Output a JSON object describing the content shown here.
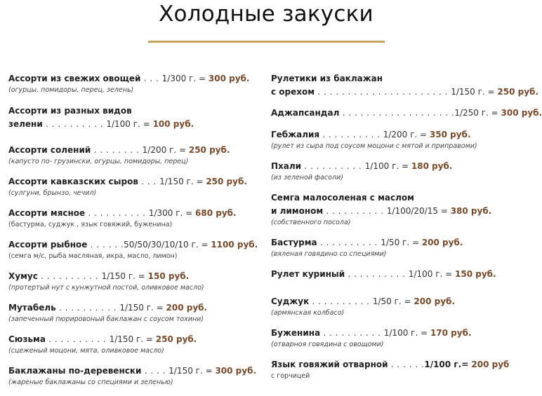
{
  "title": "Холодные закуски",
  "colors": {
    "accent_rule": "#c9a35a",
    "price": "#7b4a2a",
    "text": "#222222"
  },
  "left_column": [
    {
      "name": "Ассорти из свежих овощей",
      "dots": " . . . ",
      "portion": "1/300 г. = ",
      "price": "300 руб.",
      "note": "(огурцы, помидоры, перец, зелень)"
    },
    {
      "name_line1": "Ассорти из разных видов",
      "name": "зелени",
      "dots": " . . . . . . . . . . ",
      "portion": "1/100 г. = ",
      "price": "100 руб."
    },
    {
      "name": "Ассорти солений",
      "dots": "  . . . . . . . . ",
      "portion": "1/200 г. = ",
      "price": "250 руб.",
      "note": "(капусто по- грузински, огурцы, помидоры, перец)"
    },
    {
      "name": "Ассорти кавказских сыров",
      "dots": " . . . ",
      "portion": "1/150 г. = ",
      "price": "250 руб.",
      "note": "(сулгуни, брынзо, чечил)"
    },
    {
      "name": "Ассорти мясное",
      "dots": " . . . . . . . . . . ",
      "portion": "1/300 г. = ",
      "price": "680 руб.",
      "note": "(бастурма, суджук , язык говяжий, буженина)",
      "note_plain": true
    },
    {
      "name": "Ассорти рыбное",
      "dots": " . . . . . .",
      "portion": "50/50/30/10/10 г. = ",
      "price": "1100 руб.",
      "note": "(семга м/с, рыба масляная, икра, масло, лимон)",
      "note_plain": true
    },
    {
      "name": "Хумус",
      "dots": " . . . . . . . . . . ",
      "portion": "1/150 г. = ",
      "price": "150 руб.",
      "note": "(протертый нут с кунжутной постой, оливковое масло)"
    },
    {
      "name": "Мутабель",
      "dots": " . . . . . . . . . . ",
      "portion": "1/150 г. = ",
      "price": "200 руб.",
      "note": "(запеченный пюрировоный баклажан с соусом тохини)"
    },
    {
      "name": "Сюзьма",
      "dots": " . . . . . . . . . . ",
      "portion": "1/150 г. = ",
      "price": "250 руб.",
      "note": "(сцеженый моцони, мята, оливковое масло)"
    },
    {
      "name": "Баклажаны по-деревенски",
      "dots": " . . . . ",
      "portion": "1/150 г. = ",
      "price": "300 руб.",
      "note": "(жареные баклажаны со специями и зеленью)"
    }
  ],
  "right_column": [
    {
      "name_line1": "Рулетики из баклажан",
      "name": "с орехом",
      "dots": " . . . . . . . . . . . . . . . . . . . . . . ",
      "portion": "1/150 г. =   ",
      "price": "250 руб."
    },
    {
      "name": "Аджапсандал",
      "dots": " . . . . . . . . . . . . . . . . . . .",
      "portion": "1/250 г. = ",
      "price": "300 руб."
    },
    {
      "name": "Гебжалия",
      "dots": " . . . . . . . . . . ",
      "portion": "1/200 г. = ",
      "price": "350 руб.",
      "note": "(рулет из сыра под соусом моцони с мятой и приправоми)"
    },
    {
      "name": "Пхали",
      "dots": " . . . . . . . . . . ",
      "portion": "1/100 г. = ",
      "price": "180 руб.",
      "note": "(из зеленой фасоли)"
    },
    {
      "name_line1": "Семга малосоленая с маслом",
      "name": "и лимоном",
      "dots": " . . . . . . . . . . ",
      "portion": "1/100/20/15 = ",
      "price": "380 руб.",
      "note": "(собственного посола)"
    },
    {
      "name": "Бастурма",
      "dots": " . . . . . . . . . . ",
      "portion": "1/50 г. = ",
      "price": "200 руб.",
      "note": "(вяленая говядино со специями)"
    },
    {
      "name": "Рулет куриный",
      "dots": " . . . . . . . . . . ",
      "portion": "1/100 г. = ",
      "price": "150 руб."
    },
    {
      "name": "Суджук",
      "dots": " . . . . . . . . . . ",
      "portion": "1/50 г. = ",
      "price": "200 руб.",
      "note": "(армянская колбасо)"
    },
    {
      "name": "Буженина",
      "dots": " . . . . . . . . . . ",
      "portion": "1/100 г. = ",
      "price": "170 руб.",
      "note": "(отварноя говядина с овощоми)"
    },
    {
      "name": "Язык говяжий отварной",
      "dots": "  . . . . . .",
      "portion": "1/100 г.= ",
      "portion_bold": true,
      "price": "200 руб",
      "note": "с горчицей",
      "note_plain": true
    }
  ]
}
